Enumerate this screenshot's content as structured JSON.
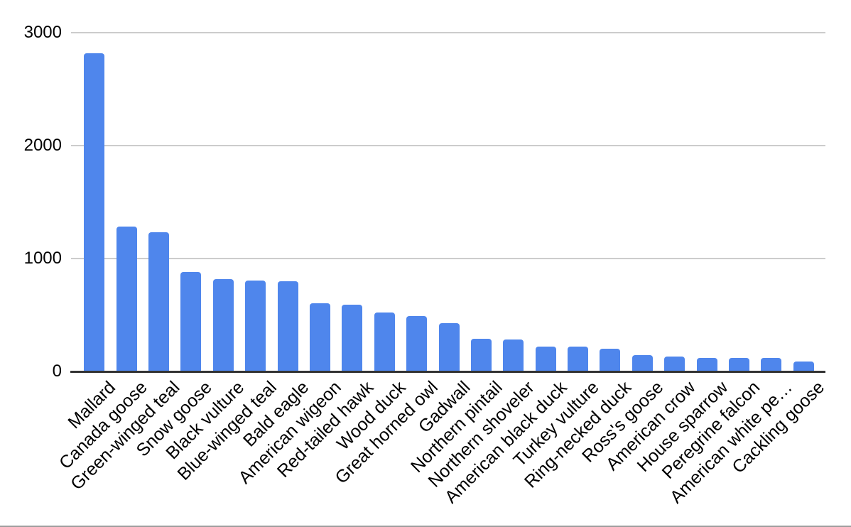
{
  "chart_data": {
    "type": "bar",
    "title": "",
    "xlabel": "",
    "ylabel": "",
    "categories": [
      "Mallard",
      "Canada goose",
      "Green-winged teal",
      "Snow goose",
      "Black vulture",
      "Blue-winged teal",
      "Bald eagle",
      "American wigeon",
      "Red-tailed hawk",
      "Wood duck",
      "Great horned owl",
      "Gadwall",
      "Northern pintail",
      "Northern shoveler",
      "American black duck",
      "Turkey vulture",
      "Ring-necked duck",
      "Ross's goose",
      "American crow",
      "House sparrow",
      "Peregrine falcon",
      "American white pe…",
      "Cackling goose"
    ],
    "values": [
      2820,
      1280,
      1230,
      880,
      820,
      805,
      800,
      605,
      590,
      525,
      490,
      425,
      288,
      280,
      220,
      218,
      200,
      145,
      130,
      120,
      118,
      117,
      90
    ],
    "ylim": [
      0,
      3000
    ],
    "yticks": [
      0,
      1000,
      2000,
      3000
    ],
    "grid": true,
    "legend_position": "none"
  },
  "colors": {
    "bar": "#4f86ec",
    "gridline": "#cccccc",
    "axis": "#333333",
    "text": "#000000",
    "divider": "#9e9e9e"
  }
}
